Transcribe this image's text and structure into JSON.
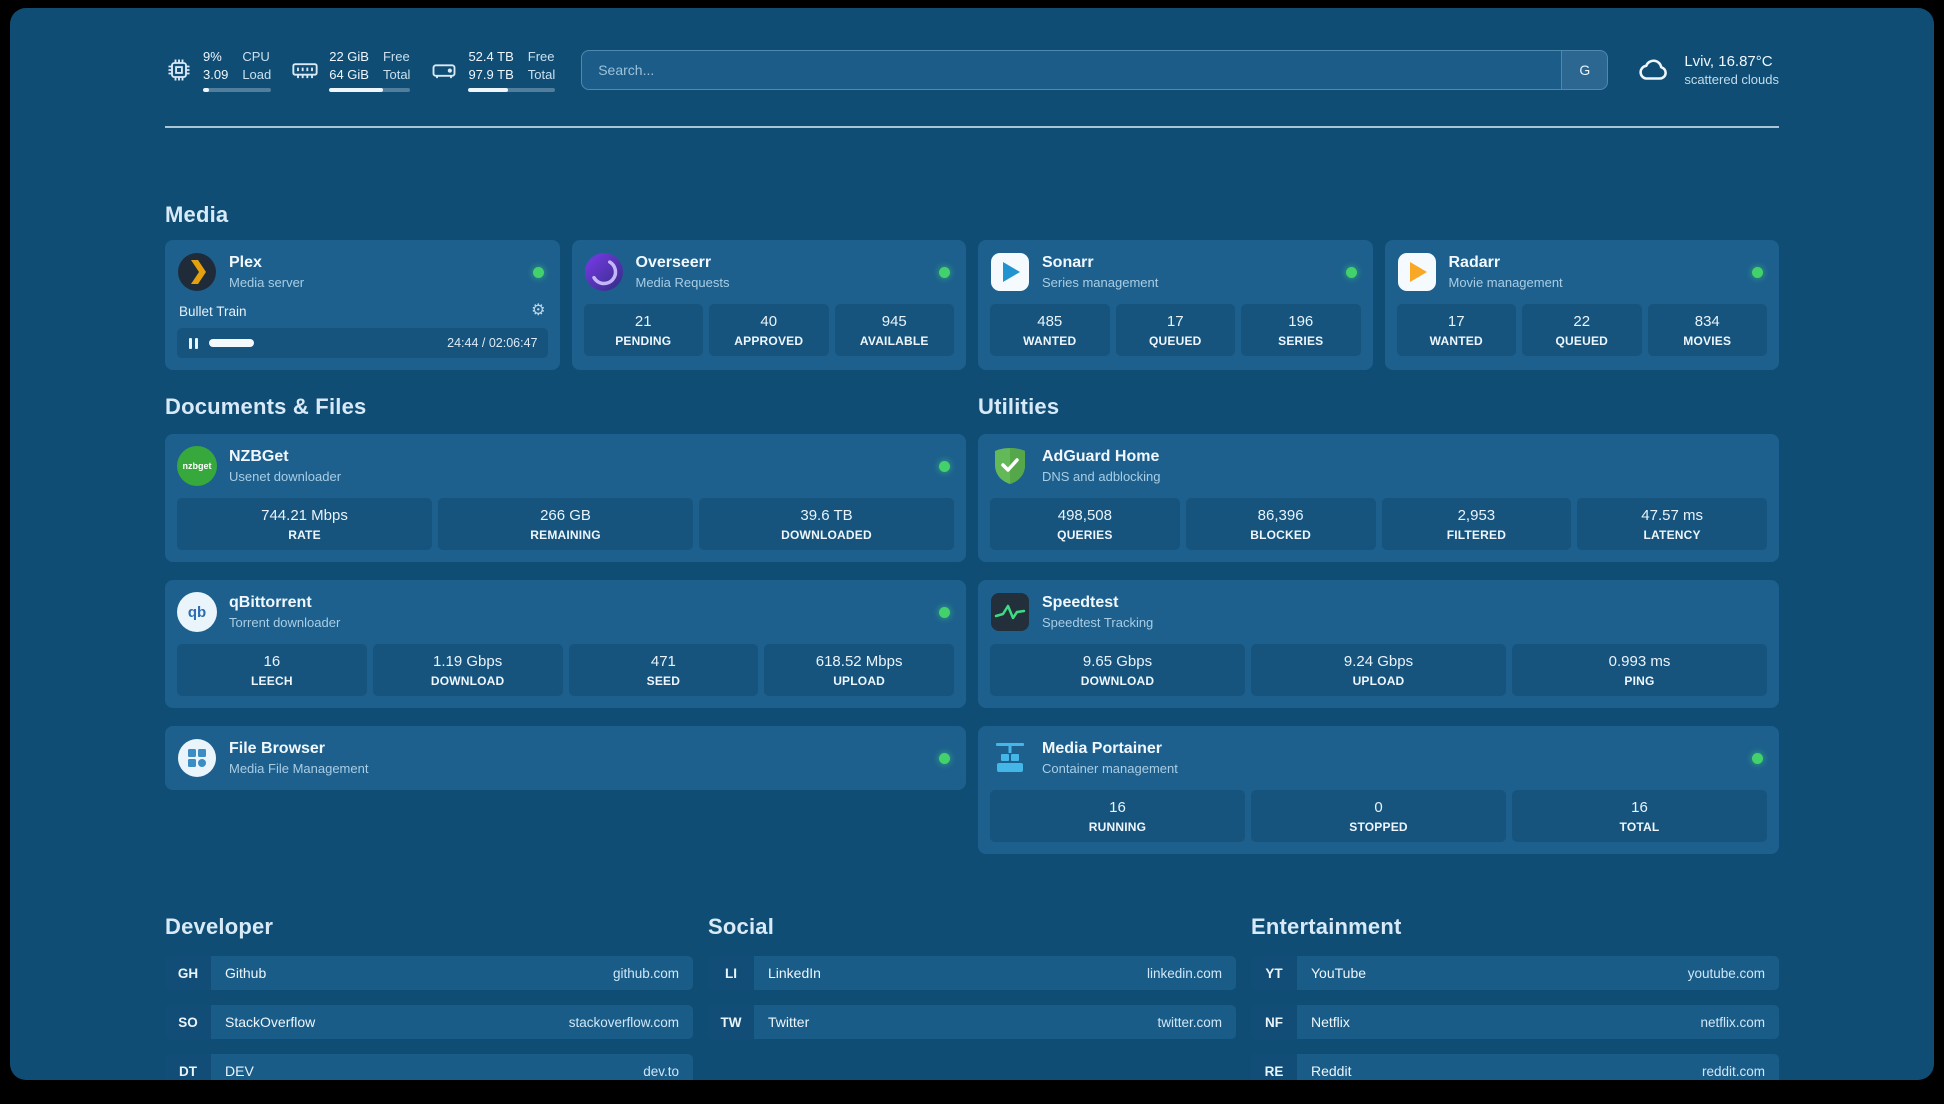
{
  "theme": {
    "background": "#0f4d75",
    "card": "#1d608e",
    "stat_box": "#16547e",
    "status_online": "#43d16c",
    "plex_accent": "#e5a00d",
    "sonarr_accent": "#2193cf",
    "radarr_accent": "#f9a825",
    "adguard_accent": "#63b857",
    "speedtest_accent": "#3ddc84",
    "portainer_accent": "#45b6e8"
  },
  "icons": {
    "gear": "⚙",
    "search_engine": "G",
    "nzbget_logo_text": "nzbget",
    "qbittorrent_logo_text": "qb"
  },
  "topbar": {
    "cpu": {
      "value1": "9%",
      "value2": "3.09",
      "label1": "CPU",
      "label2": "Load",
      "bar_percent": 9
    },
    "memory": {
      "value1": "22 GiB",
      "value2": "64 GiB",
      "label1": "Free",
      "label2": "Total",
      "bar_percent": 66
    },
    "disk": {
      "value1": "52.4 TB",
      "value2": "97.9 TB",
      "label1": "Free",
      "label2": "Total",
      "bar_percent": 46
    },
    "search": {
      "placeholder": "Search..."
    },
    "weather": {
      "location": "Lviv, 16.87°C",
      "condition": "scattered clouds"
    }
  },
  "media": {
    "title": "Media",
    "plex": {
      "name": "Plex",
      "subtitle": "Media server",
      "status": "online",
      "now_playing": "Bullet Train",
      "time": "24:44 / 02:06:47",
      "progress_percent": 19.5
    },
    "overseerr": {
      "name": "Overseerr",
      "subtitle": "Media Requests",
      "status": "online",
      "stats": [
        {
          "value": "21",
          "label": "PENDING"
        },
        {
          "value": "40",
          "label": "APPROVED"
        },
        {
          "value": "945",
          "label": "AVAILABLE"
        }
      ]
    },
    "sonarr": {
      "name": "Sonarr",
      "subtitle": "Series management",
      "status": "online",
      "stats": [
        {
          "value": "485",
          "label": "WANTED"
        },
        {
          "value": "17",
          "label": "QUEUED"
        },
        {
          "value": "196",
          "label": "SERIES"
        }
      ]
    },
    "radarr": {
      "name": "Radarr",
      "subtitle": "Movie management",
      "status": "online",
      "stats": [
        {
          "value": "17",
          "label": "WANTED"
        },
        {
          "value": "22",
          "label": "QUEUED"
        },
        {
          "value": "834",
          "label": "MOVIES"
        }
      ]
    }
  },
  "documents": {
    "title": "Documents & Files",
    "nzbget": {
      "name": "NZBGet",
      "subtitle": "Usenet downloader",
      "status": "online",
      "stats": [
        {
          "value": "744.21 Mbps",
          "label": "RATE"
        },
        {
          "value": "266 GB",
          "label": "REMAINING"
        },
        {
          "value": "39.6 TB",
          "label": "DOWNLOADED"
        }
      ]
    },
    "qbittorrent": {
      "name": "qBittorrent",
      "subtitle": "Torrent downloader",
      "status": "online",
      "stats": [
        {
          "value": "16",
          "label": "LEECH"
        },
        {
          "value": "1.19 Gbps",
          "label": "DOWNLOAD"
        },
        {
          "value": "471",
          "label": "SEED"
        },
        {
          "value": "618.52 Mbps",
          "label": "UPLOAD"
        }
      ]
    },
    "filebrowser": {
      "name": "File Browser",
      "subtitle": "Media File Management",
      "status": "online"
    }
  },
  "utilities": {
    "title": "Utilities",
    "adguard": {
      "name": "AdGuard Home",
      "subtitle": "DNS and adblocking",
      "stats": [
        {
          "value": "498,508",
          "label": "QUERIES"
        },
        {
          "value": "86,396",
          "label": "BLOCKED"
        },
        {
          "value": "2,953",
          "label": "FILTERED"
        },
        {
          "value": "47.57 ms",
          "label": "LATENCY"
        }
      ]
    },
    "speedtest": {
      "name": "Speedtest",
      "subtitle": "Speedtest Tracking",
      "stats": [
        {
          "value": "9.65 Gbps",
          "label": "DOWNLOAD"
        },
        {
          "value": "9.24 Gbps",
          "label": "UPLOAD"
        },
        {
          "value": "0.993 ms",
          "label": "PING"
        }
      ]
    },
    "portainer": {
      "name": "Media Portainer",
      "subtitle": "Container management",
      "status": "online",
      "stats": [
        {
          "value": "16",
          "label": "RUNNING"
        },
        {
          "value": "0",
          "label": "STOPPED"
        },
        {
          "value": "16",
          "label": "TOTAL"
        }
      ]
    }
  },
  "bookmarks": {
    "developer": {
      "title": "Developer",
      "items": [
        {
          "abbr": "GH",
          "name": "Github",
          "domain": "github.com"
        },
        {
          "abbr": "SO",
          "name": "StackOverflow",
          "domain": "stackoverflow.com"
        },
        {
          "abbr": "DT",
          "name": "DEV",
          "domain": "dev.to"
        }
      ]
    },
    "social": {
      "title": "Social",
      "items": [
        {
          "abbr": "LI",
          "name": "LinkedIn",
          "domain": "linkedin.com"
        },
        {
          "abbr": "TW",
          "name": "Twitter",
          "domain": "twitter.com"
        }
      ]
    },
    "entertainment": {
      "title": "Entertainment",
      "items": [
        {
          "abbr": "YT",
          "name": "YouTube",
          "domain": "youtube.com"
        },
        {
          "abbr": "NF",
          "name": "Netflix",
          "domain": "netflix.com"
        },
        {
          "abbr": "RE",
          "name": "Reddit",
          "domain": "reddit.com"
        }
      ]
    }
  }
}
